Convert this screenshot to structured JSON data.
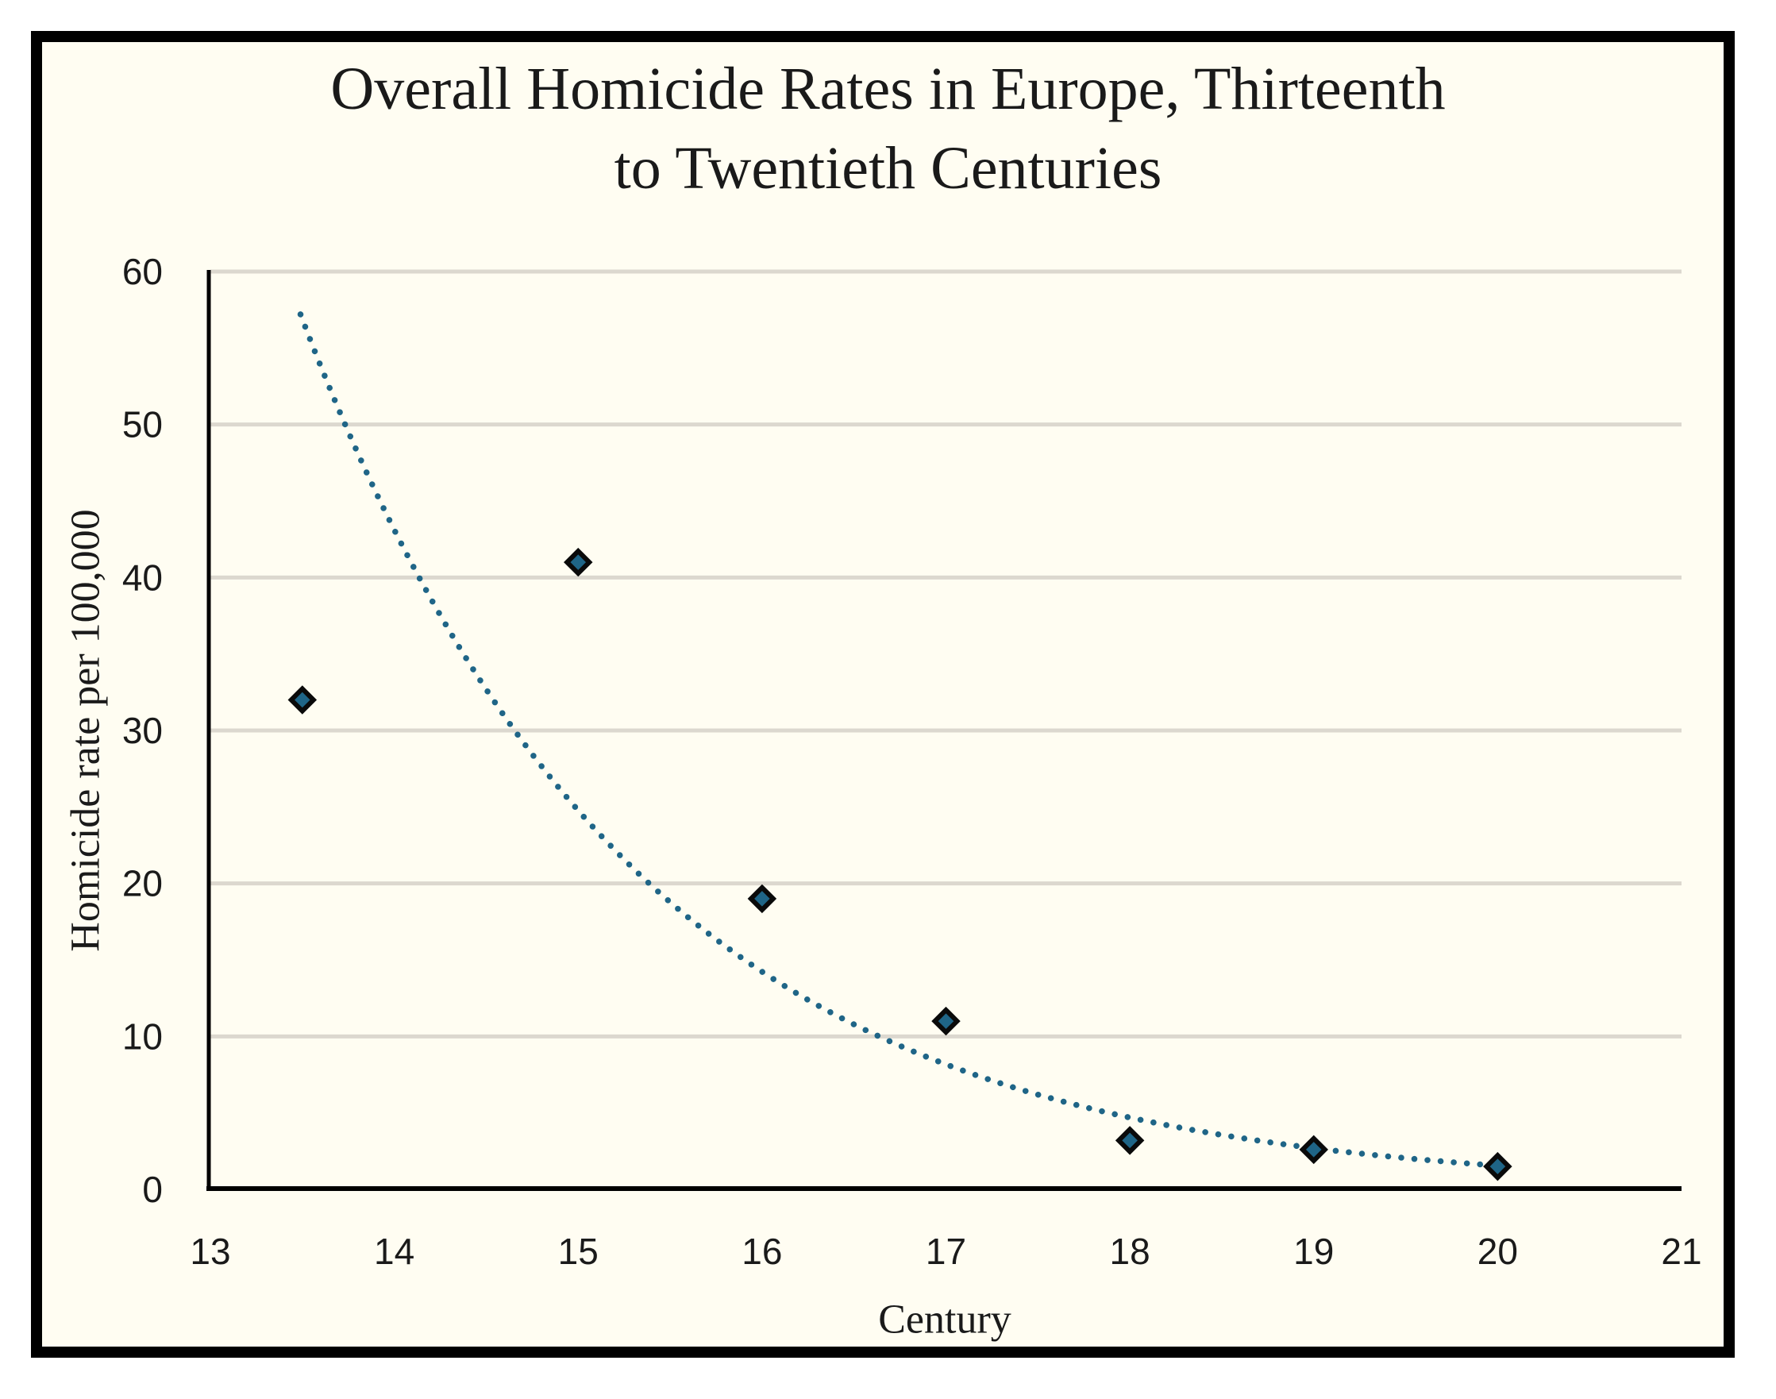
{
  "chart_data": {
    "type": "scatter",
    "title": "Overall Homicide Rates in Europe, Thirteenth to Twentieth Centuries",
    "title_lines": [
      "Overall Homicide Rates in Europe, Thirteenth",
      "to Twentieth Centuries"
    ],
    "xlabel": "Century",
    "ylabel": "Homicide rate per 100,000",
    "xlim": [
      13,
      21
    ],
    "ylim": [
      0,
      60
    ],
    "x_ticks": [
      13,
      14,
      15,
      16,
      17,
      18,
      19,
      20,
      21
    ],
    "y_ticks": [
      0,
      10,
      20,
      30,
      40,
      50,
      60
    ],
    "grid": "horizontal",
    "legend": "none",
    "points": [
      {
        "x": 13.5,
        "y": 32
      },
      {
        "x": 15,
        "y": 41
      },
      {
        "x": 16,
        "y": 19
      },
      {
        "x": 17,
        "y": 11
      },
      {
        "x": 18,
        "y": 3.2
      },
      {
        "x": 19,
        "y": 2.6
      },
      {
        "x": 20,
        "y": 1.5
      }
    ],
    "marker": {
      "shape": "diamond",
      "fill": "#1f6587",
      "stroke": "#0a0a0a"
    },
    "trendline": {
      "type": "exponential",
      "style": "dotted",
      "color": "#1f6587",
      "x_start": 13.49,
      "y_start": 57.2,
      "x_end": 20.0,
      "y_end": 1.55
    },
    "colors": {
      "background": "#fffdf2",
      "frame": "#000000",
      "gridline": "#dcd8cf",
      "axis": "#000000",
      "text": "#1a1a1a"
    }
  }
}
